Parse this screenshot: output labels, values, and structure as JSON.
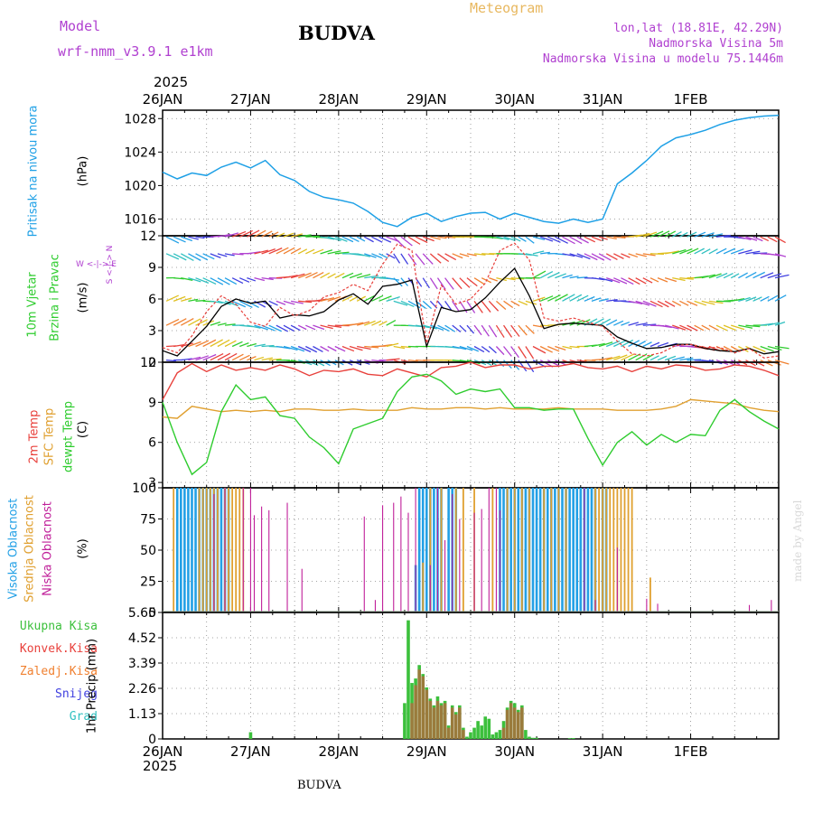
{
  "header": {
    "model_label": "Model",
    "model_name": "wrf-nmm_v3.9.1 e1km",
    "station": "BUDVA",
    "meteogram_label": "Meteogram",
    "lonlat": "lon,lat (18.81E, 42.29N)",
    "elevation": "Nadmorska Visina 5m",
    "elevation_model": "Nadmorska Visina u modelu 75.1446m",
    "year_top": "2025",
    "year_bottom": "2025",
    "footer_station": "BUDVA",
    "watermark": "made by Angel"
  },
  "colors": {
    "pressure": "#1ea0e6",
    "temp2m": "#e8413c",
    "sfc": "#e0a030",
    "dewpt": "#2ecc2e",
    "wind_black": "#000000",
    "wind_red": "#e8413c",
    "cloud_high": "#22a0e6",
    "cloud_mid": "#e0a030",
    "cloud_low": "#c0209a",
    "precip_total": "#3cc03c",
    "precip_conv": "#e8413c",
    "precip_frz": "#f08030",
    "snow": "#4040e0",
    "grad": "#30c0c0",
    "label_purple": "#b040d0",
    "label_orange": "#e8b860"
  },
  "date_labels": [
    "26JAN",
    "27JAN",
    "28JAN",
    "29JAN",
    "30JAN",
    "31JAN",
    "1FEB"
  ],
  "panel_labels": {
    "pressure": {
      "title": "Pritisak na nivou mora",
      "unit": "(hPa)"
    },
    "wind": {
      "title1": "10m Vjetar",
      "title2": "Brzina i Pravac",
      "unit": "(m/s)",
      "compass": "W <-|-> E",
      "compass_side": "S <-|-> N"
    },
    "temp": {
      "l1": "2m Temp",
      "l2": "SFC Temp",
      "l3": "dewpt Temp",
      "unit": "(C)"
    },
    "cloud": {
      "l1": "Visoka Oblacnost",
      "l2": "Srednja Oblacnost",
      "l3": "Niska Oblacnost",
      "unit": "(%)"
    },
    "precip": {
      "l1": "Ukupna Kisa",
      "l2": "Konvek.Kisa",
      "l3": "Zaledj.Kisa",
      "l4": "Snijeg",
      "l5": "Grad",
      "unit": "1hr Precip (mm)"
    }
  },
  "chart_data": [
    {
      "type": "line",
      "title": "",
      "ylabel": "(hPa)",
      "x_unit": "hours since 26JAN 00 UTC",
      "ylim": [
        1014,
        1029
      ],
      "yticks": [
        "1016",
        "1020",
        "1024",
        "1028"
      ],
      "grid": true,
      "series": [
        {
          "name": "Pritisak na nivou mora",
          "x": [
            0,
            4,
            8,
            12,
            16,
            20,
            24,
            28,
            32,
            36,
            40,
            44,
            48,
            52,
            56,
            60,
            64,
            68,
            72,
            76,
            80,
            84,
            88,
            92,
            96,
            100,
            104,
            108,
            112,
            116,
            120,
            124,
            128,
            132,
            136,
            140,
            144,
            148,
            152,
            156,
            160,
            164,
            168
          ],
          "values": [
            1021.6,
            1020.8,
            1021.5,
            1021.2,
            1022.2,
            1022.8,
            1022.1,
            1023,
            1021.3,
            1020.6,
            1019.3,
            1018.6,
            1018.3,
            1017.9,
            1016.9,
            1015.6,
            1015.1,
            1016.2,
            1016.7,
            1015.7,
            1016.3,
            1016.7,
            1016.8,
            1016.0,
            1016.7,
            1016.2,
            1015.7,
            1015.5,
            1016.0,
            1015.6,
            1016.0,
            1020.2,
            1021.5,
            1023.0,
            1024.7,
            1025.7,
            1026.1,
            1026.6,
            1027.3,
            1027.8,
            1028.1,
            1028.3,
            1028.4
          ]
        }
      ]
    },
    {
      "type": "line",
      "title": "",
      "ylabel": "(m/s)",
      "ylim": [
        0,
        12
      ],
      "yticks": [
        "0",
        "3",
        "6",
        "9",
        "12"
      ],
      "grid": true,
      "series": [
        {
          "name": "wind speed",
          "x": [
            0,
            4,
            8,
            12,
            16,
            20,
            24,
            28,
            32,
            36,
            40,
            44,
            48,
            52,
            56,
            60,
            64,
            68,
            72,
            76,
            80,
            84,
            88,
            92,
            96,
            100,
            104,
            108,
            112,
            116,
            120,
            124,
            128,
            132,
            136,
            140,
            144,
            148,
            152,
            156,
            160,
            164,
            168
          ],
          "values": [
            1.1,
            0.6,
            2.0,
            3.4,
            5.3,
            6.0,
            5.6,
            5.8,
            4.2,
            4.5,
            4.4,
            4.8,
            5.9,
            6.5,
            5.5,
            7.2,
            7.4,
            7.8,
            1.5,
            5.2,
            4.8,
            5.0,
            6.1,
            7.6,
            8.9,
            6.3,
            3.2,
            3.6,
            3.7,
            3.6,
            3.5,
            2.4,
            1.8,
            1.3,
            1.4,
            1.7,
            1.7,
            1.3,
            1.1,
            1.0,
            1.3,
            0.8,
            1.0
          ]
        },
        {
          "name": "gust",
          "x": [
            0,
            4,
            8,
            12,
            16,
            20,
            24,
            28,
            32,
            36,
            40,
            44,
            48,
            52,
            56,
            60,
            64,
            68,
            72,
            76,
            80,
            84,
            88,
            92,
            96,
            100,
            104,
            108,
            112,
            116,
            120,
            124,
            128,
            132,
            136,
            140,
            144,
            148,
            152,
            156,
            160,
            164,
            168
          ],
          "values": [
            1.4,
            0.9,
            2.5,
            4.8,
            6.3,
            5.5,
            3.8,
            3.4,
            5.2,
            4.4,
            4.9,
            6.2,
            6.6,
            7.4,
            6.8,
            9.3,
            11.2,
            10.6,
            1.8,
            7.3,
            5.5,
            6.0,
            7.5,
            10.6,
            11.3,
            9.7,
            4.2,
            3.9,
            4.2,
            3.8,
            3.4,
            2.0,
            0.8,
            0.6,
            0.9,
            1.6,
            1.7,
            1.4,
            1.4,
            0.9,
            1.3,
            0.4,
            0.6
          ]
        }
      ]
    },
    {
      "type": "line",
      "title": "",
      "ylabel": "(C)",
      "ylim": [
        2.6,
        12
      ],
      "yticks": [
        "3",
        "6",
        "9",
        "12"
      ],
      "grid": true,
      "series": [
        {
          "name": "2m Temp",
          "x": [
            0,
            4,
            8,
            12,
            16,
            20,
            24,
            28,
            32,
            36,
            40,
            44,
            48,
            52,
            56,
            60,
            64,
            68,
            72,
            76,
            80,
            84,
            88,
            92,
            96,
            100,
            104,
            108,
            112,
            116,
            120,
            124,
            128,
            132,
            136,
            140,
            144,
            148,
            152,
            156,
            160,
            164,
            168
          ],
          "values": [
            9.2,
            11.2,
            11.9,
            11.3,
            11.8,
            11.4,
            11.6,
            11.4,
            11.8,
            11.5,
            11.0,
            11.4,
            11.3,
            11.5,
            11.1,
            11.0,
            11.5,
            11.2,
            10.9,
            11.6,
            11.7,
            12.0,
            11.6,
            11.8,
            11.8,
            11.5,
            11.7,
            11.7,
            11.9,
            11.6,
            11.5,
            11.7,
            11.3,
            11.7,
            11.5,
            11.8,
            11.7,
            11.4,
            11.5,
            11.8,
            11.7,
            11.4,
            11.0
          ]
        },
        {
          "name": "SFC Temp",
          "x": [
            0,
            4,
            8,
            12,
            16,
            20,
            24,
            28,
            32,
            36,
            40,
            44,
            48,
            52,
            56,
            60,
            64,
            68,
            72,
            76,
            80,
            84,
            88,
            92,
            96,
            100,
            104,
            108,
            112,
            116,
            120,
            124,
            128,
            132,
            136,
            140,
            144,
            148,
            152,
            156,
            160,
            164,
            168
          ],
          "values": [
            7.9,
            7.8,
            8.7,
            8.5,
            8.3,
            8.4,
            8.3,
            8.4,
            8.3,
            8.5,
            8.5,
            8.4,
            8.4,
            8.5,
            8.4,
            8.4,
            8.4,
            8.6,
            8.5,
            8.5,
            8.6,
            8.6,
            8.5,
            8.6,
            8.5,
            8.5,
            8.5,
            8.6,
            8.5,
            8.5,
            8.5,
            8.4,
            8.4,
            8.4,
            8.5,
            8.7,
            9.2,
            9.1,
            9.0,
            8.9,
            8.6,
            8.4,
            8.3
          ]
        },
        {
          "name": "dewpt Temp",
          "x": [
            0,
            4,
            8,
            12,
            16,
            20,
            24,
            28,
            32,
            36,
            40,
            44,
            48,
            52,
            56,
            60,
            64,
            68,
            72,
            76,
            80,
            84,
            88,
            92,
            96,
            100,
            104,
            108,
            112,
            116,
            120,
            124,
            128,
            132,
            136,
            140,
            144,
            148,
            152,
            156,
            160,
            164,
            168
          ],
          "values": [
            9.0,
            6.0,
            3.6,
            4.5,
            8.3,
            10.3,
            9.2,
            9.4,
            8.0,
            7.8,
            6.4,
            5.6,
            4.4,
            7.0,
            7.4,
            7.8,
            9.8,
            10.9,
            11.1,
            10.6,
            9.6,
            10.0,
            9.8,
            10.0,
            8.6,
            8.6,
            8.4,
            8.5,
            8.5,
            6.3,
            4.3,
            6.0,
            6.8,
            5.8,
            6.6,
            6.0,
            6.6,
            6.5,
            8.4,
            9.2,
            8.3,
            7.6,
            7.0
          ]
        }
      ]
    },
    {
      "type": "bar",
      "title": "",
      "ylabel": "(%)",
      "ylim": [
        0,
        100
      ],
      "yticks": [
        "0",
        "25",
        "50",
        "75",
        "100"
      ],
      "grid": true,
      "series": [
        {
          "name": "Visoka Oblacnost",
          "x": [
            4,
            5,
            6,
            7,
            8,
            9,
            10,
            11,
            12,
            13,
            14,
            15,
            16,
            17,
            18,
            69,
            70,
            71,
            72,
            73,
            74,
            75,
            76,
            78,
            79,
            80,
            92,
            93,
            94,
            95,
            96,
            97,
            98,
            99,
            100,
            101,
            102,
            103,
            104,
            105,
            106,
            107,
            108,
            109,
            110,
            111,
            112,
            113,
            114,
            115,
            116,
            117,
            118,
            120,
            121
          ],
          "values": [
            100,
            100,
            100,
            100,
            100,
            100,
            100,
            100,
            100,
            100,
            100,
            100,
            100,
            100,
            100,
            38,
            100,
            100,
            100,
            100,
            100,
            100,
            100,
            100,
            100,
            100,
            100,
            100,
            100,
            100,
            100,
            100,
            100,
            100,
            100,
            100,
            100,
            100,
            100,
            100,
            100,
            100,
            100,
            100,
            100,
            100,
            100,
            100,
            100,
            100,
            100,
            100,
            100,
            100,
            100
          ]
        },
        {
          "name": "Srednja Oblacnost",
          "x": [
            3,
            10,
            11,
            12,
            13,
            14,
            15,
            17,
            18,
            19,
            20,
            21,
            22,
            71,
            73,
            76,
            80,
            82,
            85,
            90,
            94,
            96,
            98,
            100,
            104,
            106,
            108,
            110,
            118,
            119,
            120,
            121,
            122,
            123,
            124,
            125,
            126,
            127,
            128,
            133
          ],
          "values": [
            100,
            100,
            100,
            100,
            100,
            100,
            100,
            100,
            100,
            100,
            100,
            100,
            100,
            40,
            100,
            100,
            100,
            100,
            100,
            100,
            100,
            100,
            100,
            100,
            100,
            100,
            100,
            100,
            100,
            100,
            100,
            100,
            100,
            100,
            100,
            100,
            100,
            100,
            100,
            28
          ]
        },
        {
          "name": "Niska Oblacnost",
          "x": [
            14,
            17,
            22,
            24,
            25,
            27,
            29,
            34,
            38,
            55,
            58,
            60,
            63,
            65,
            67,
            69,
            73,
            75,
            77,
            79,
            81,
            85,
            87,
            89,
            91,
            92,
            115,
            118,
            124,
            132,
            135,
            160,
            166
          ],
          "values": [
            95,
            100,
            100,
            100,
            78,
            85,
            82,
            88,
            35,
            77,
            10,
            86,
            88,
            93,
            80,
            100,
            38,
            100,
            58,
            95,
            75,
            80,
            83,
            100,
            100,
            82,
            100,
            10,
            52,
            11,
            7,
            6,
            10
          ]
        }
      ]
    },
    {
      "type": "bar",
      "title": "",
      "ylabel": "1hr Precip (mm)",
      "ylim": [
        0,
        5.65
      ],
      "yticks": [
        "0",
        "1.13",
        "2.26",
        "3.39",
        "4.52",
        "5.65"
      ],
      "grid": true,
      "series": [
        {
          "name": "Ukupna Kisa",
          "x": [
            24,
            66,
            67,
            68,
            69,
            70,
            71,
            72,
            73,
            74,
            75,
            76,
            77,
            78,
            79,
            80,
            81,
            82,
            83,
            84,
            85,
            86,
            87,
            88,
            89,
            90,
            91,
            92,
            93,
            94,
            95,
            96,
            97,
            98,
            99,
            100,
            101,
            102,
            111,
            112
          ],
          "values": [
            0.3,
            1.6,
            5.3,
            2.5,
            2.7,
            3.3,
            2.9,
            2.3,
            1.8,
            1.5,
            1.9,
            1.6,
            1.7,
            0.6,
            1.5,
            1.2,
            1.5,
            0.5,
            0.1,
            0.3,
            0.5,
            0.8,
            0.6,
            1.0,
            0.9,
            0.2,
            0.3,
            0.4,
            0.8,
            1.4,
            1.7,
            1.6,
            1.3,
            1.5,
            0.4,
            0.1,
            0.05,
            0.05,
            0.03,
            0.04
          ]
        },
        {
          "name": "Konvek.Kisa",
          "x": [
            68,
            69,
            70,
            71,
            72,
            73,
            74,
            75,
            76,
            77,
            78,
            79,
            80,
            81,
            82,
            93,
            94,
            95,
            96,
            97,
            98
          ],
          "values": [
            1.6,
            2.4,
            3.1,
            2.8,
            2.2,
            1.7,
            1.4,
            1.7,
            1.5,
            1.6,
            0.5,
            1.4,
            1.1,
            1.4,
            0.4,
            0.5,
            1.3,
            1.6,
            1.4,
            1.2,
            1.4
          ]
        }
      ]
    }
  ]
}
